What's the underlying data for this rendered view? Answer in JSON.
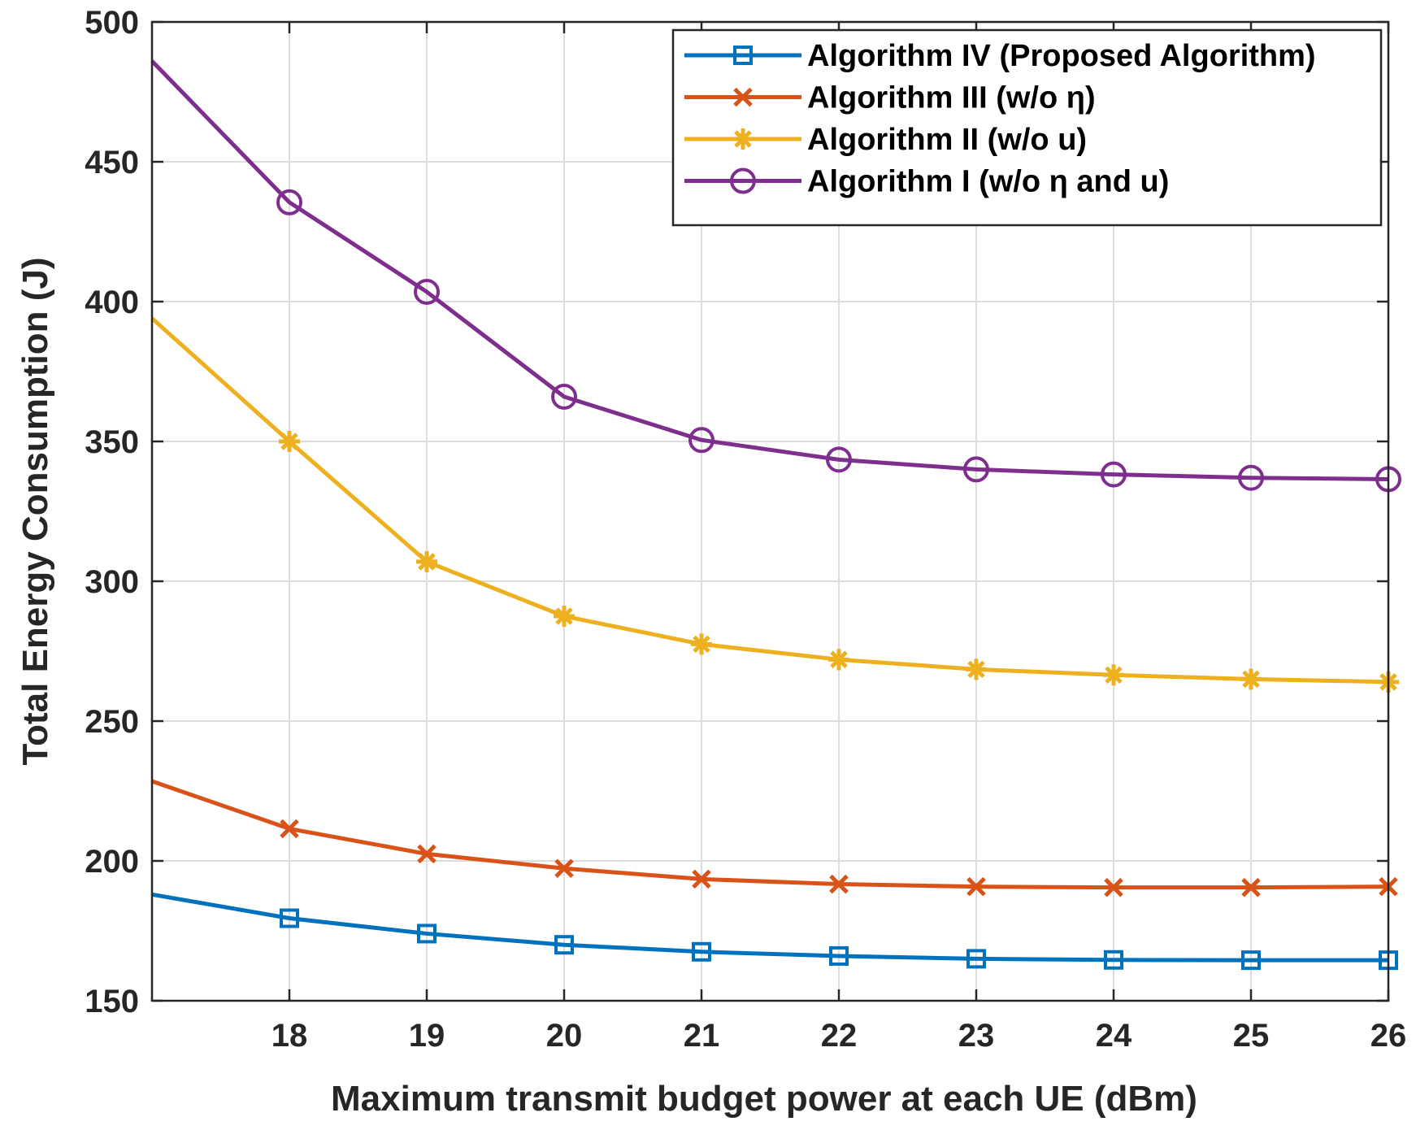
{
  "chart_data": {
    "type": "line",
    "title": "",
    "xlabel": "Maximum transmit budget power at each UE (dBm)",
    "ylabel": "Total Energy Consumption (J)",
    "xlim": [
      17,
      26
    ],
    "ylim": [
      150,
      500
    ],
    "x": [
      17,
      18,
      19,
      20,
      21,
      22,
      23,
      24,
      25,
      26
    ],
    "xticks": [
      18,
      19,
      20,
      21,
      22,
      23,
      24,
      25,
      26
    ],
    "yticks": [
      150,
      200,
      250,
      300,
      350,
      400,
      450,
      500
    ],
    "grid": true,
    "legend_position": "top-right",
    "series": [
      {
        "name": "Algorithm IV (Proposed Algorithm)",
        "color": "#0072BD",
        "marker": "square",
        "values": [
          188,
          179.5,
          174,
          170,
          167.5,
          166,
          165,
          164.6,
          164.5,
          164.5
        ]
      },
      {
        "name": "Algorithm III (w/o η)",
        "color": "#D95319",
        "marker": "x",
        "values": [
          228.5,
          211.5,
          202.5,
          197.3,
          193.5,
          191.7,
          190.8,
          190.5,
          190.5,
          190.8
        ]
      },
      {
        "name": "Algorithm II (w/o u)",
        "color": "#EDB120",
        "marker": "asterisk",
        "values": [
          394,
          350,
          307,
          287.5,
          277.5,
          272,
          268.5,
          266.5,
          265,
          264
        ]
      },
      {
        "name": "Algorithm I (w/o η and u)",
        "color": "#7E2F8E",
        "marker": "circle",
        "values": [
          486,
          435.5,
          403.5,
          366,
          350.5,
          343.5,
          340,
          338.2,
          337,
          336.5
        ]
      }
    ]
  }
}
